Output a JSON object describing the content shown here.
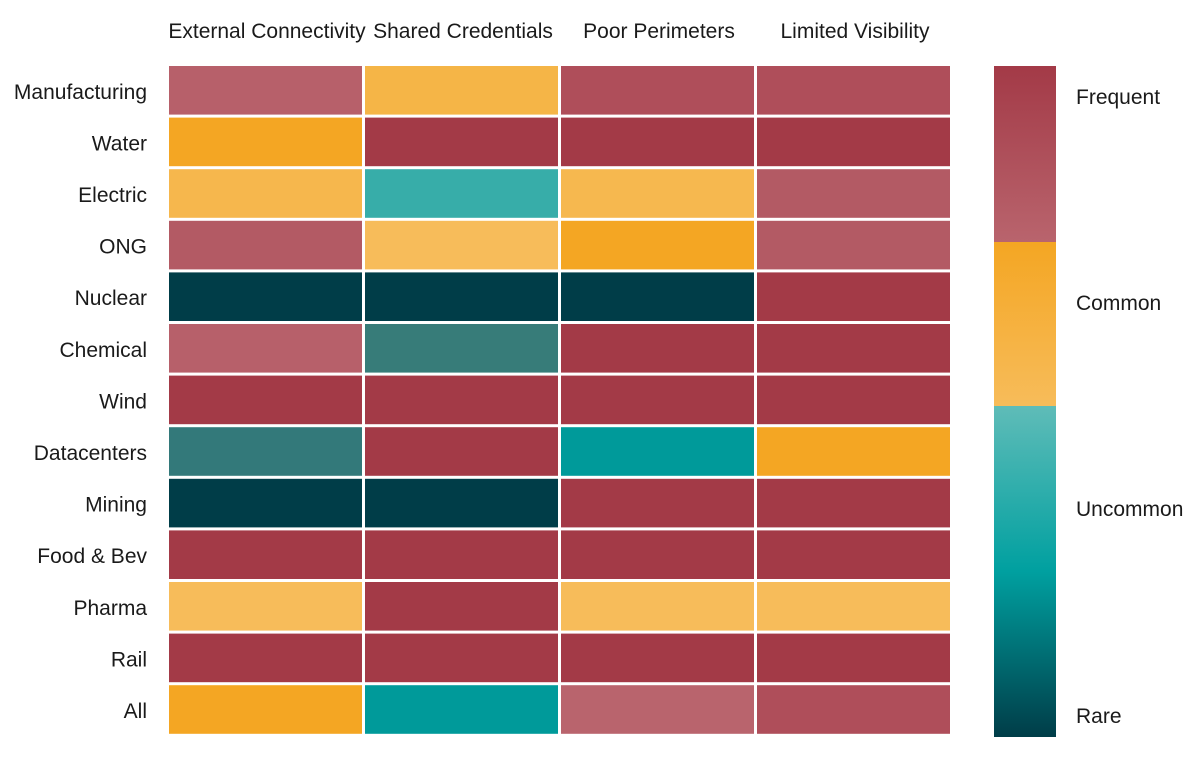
{
  "chart_data": {
    "type": "heatmap",
    "columns": [
      "External Connectivity",
      "Shared Credentials",
      "Poor Perimeters",
      "Limited Visibility"
    ],
    "rows": [
      "Manufacturing",
      "Water",
      "Electric",
      "ONG",
      "Nuclear",
      "Chemical",
      "Wind",
      "Datacenters",
      "Mining",
      "Food & Bev",
      "Pharma",
      "Rail",
      "All"
    ],
    "scale_levels": [
      "Rare",
      "Uncommon",
      "Common",
      "Frequent"
    ],
    "values": [
      [
        "Frequent",
        "Common",
        "Frequent",
        "Frequent"
      ],
      [
        "Common",
        "Frequent",
        "Frequent",
        "Frequent"
      ],
      [
        "Common",
        "Uncommon",
        "Common",
        "Frequent"
      ],
      [
        "Frequent",
        "Common",
        "Common",
        "Frequent"
      ],
      [
        "Rare",
        "Rare",
        "Rare",
        "Frequent"
      ],
      [
        "Frequent",
        "Rare",
        "Frequent",
        "Frequent"
      ],
      [
        "Frequent",
        "Frequent",
        "Frequent",
        "Frequent"
      ],
      [
        "Rare",
        "Frequent",
        "Uncommon",
        "Common"
      ],
      [
        "Rare",
        "Rare",
        "Frequent",
        "Frequent"
      ],
      [
        "Frequent",
        "Frequent",
        "Frequent",
        "Frequent"
      ],
      [
        "Common",
        "Frequent",
        "Common",
        "Common"
      ],
      [
        "Frequent",
        "Frequent",
        "Frequent",
        "Frequent"
      ],
      [
        "Common",
        "Uncommon",
        "Frequent",
        "Frequent"
      ]
    ],
    "cell_colors": [
      [
        "#b7606a",
        "#f5b547",
        "#af4e5a",
        "#af4e5a"
      ],
      [
        "#f4a623",
        "#a33a47",
        "#a33a47",
        "#a33a47"
      ],
      [
        "#f6b74d",
        "#37ada9",
        "#f6b84f",
        "#b35a64"
      ],
      [
        "#b35a64",
        "#f7bc5a",
        "#f4a623",
        "#b35a64"
      ],
      [
        "#003d48",
        "#003d48",
        "#003d48",
        "#a33a47"
      ],
      [
        "#b7606a",
        "#377c79",
        "#a33a47",
        "#a33a47"
      ],
      [
        "#a33a47",
        "#a33a47",
        "#a33a47",
        "#a33a47"
      ],
      [
        "#33797a",
        "#a33a47",
        "#009a9a",
        "#f4a623"
      ],
      [
        "#003d48",
        "#003d48",
        "#a33a47",
        "#a33a47"
      ],
      [
        "#a33a47",
        "#a33a47",
        "#a33a47",
        "#a33a47"
      ],
      [
        "#f7bc5a",
        "#a33a47",
        "#f7bc5a",
        "#f7bc5a"
      ],
      [
        "#a33a47",
        "#a33a47",
        "#a33a47",
        "#a33a47"
      ],
      [
        "#f4a623",
        "#009a9a",
        "#b9646d",
        "#af4e5a"
      ]
    ],
    "legend": {
      "placement": "right",
      "labels": [
        "Frequent",
        "Common",
        "Uncommon",
        "Rare"
      ],
      "colors": {
        "frequent_top": "#a33a47",
        "frequent_bottom": "#b9646d",
        "common_top": "#f4a623",
        "common_bottom": "#f7bc5a",
        "uncommon_top": "#5fbcb8",
        "uncommon_mid": "#00a0a0",
        "rare_bottom": "#003d48"
      }
    },
    "title": "",
    "xlabel": "",
    "ylabel": "",
    "grid": false
  }
}
